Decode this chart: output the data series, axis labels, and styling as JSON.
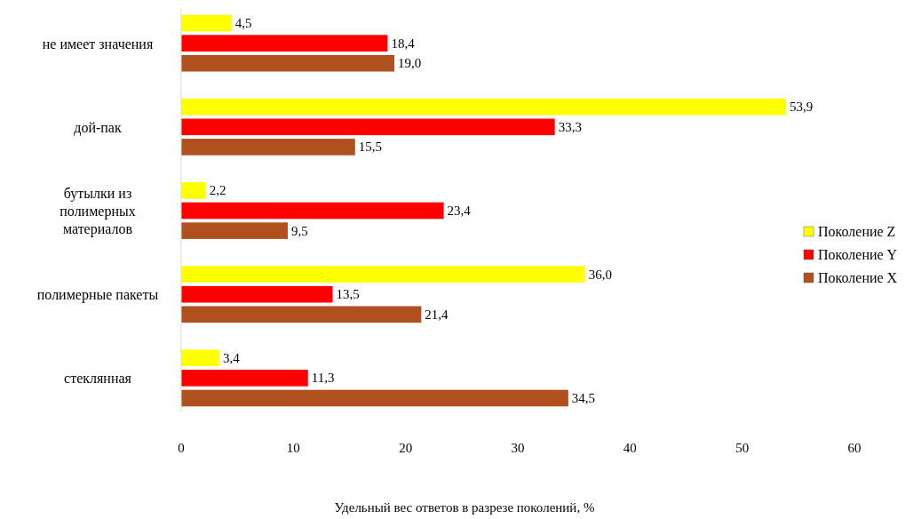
{
  "chart_data": {
    "type": "bar",
    "orientation": "horizontal",
    "xlabel": "Удельный вес ответов в разрезе поколений,  %",
    "categories": [
      "не имеет значения",
      "дой-пак",
      "бутылки из полимерных материалов",
      "полимерные пакеты",
      "стеклянная"
    ],
    "series": [
      {
        "name": "Поколение  Z",
        "color": "#ffff00",
        "values": [
          4.5,
          53.9,
          2.2,
          36.0,
          3.4
        ],
        "value_labels": [
          "4,5",
          "53,9",
          "2,2",
          "36,0",
          "3,4"
        ]
      },
      {
        "name": "Поколение  Y",
        "color": "#ff0000",
        "values": [
          18.4,
          33.3,
          23.4,
          13.5,
          11.3
        ],
        "value_labels": [
          "18,4",
          "33,3",
          "23,4",
          "13,5",
          "11,3"
        ]
      },
      {
        "name": "Поколение X",
        "color": "#b0501e",
        "values": [
          19.0,
          15.5,
          9.5,
          21.4,
          34.5
        ],
        "value_labels": [
          "19,0",
          "15,5",
          "9,5",
          "21,4",
          "34,5"
        ]
      }
    ],
    "xlim": [
      0,
      60
    ],
    "xticks": [
      0,
      10,
      20,
      30,
      40,
      50,
      60
    ],
    "legend": "right",
    "grid": false
  }
}
